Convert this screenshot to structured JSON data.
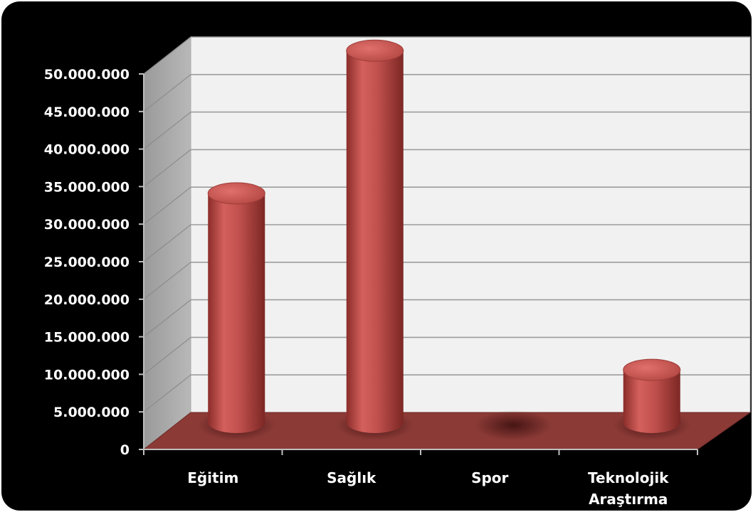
{
  "chart_data": {
    "type": "bar",
    "style": "3d-cylinder",
    "title": "",
    "xlabel": "",
    "ylabel": "",
    "categories": [
      "Eğitim",
      "Sağlık",
      "Spor",
      "Teknolojik Araştırma"
    ],
    "category_lines": [
      [
        "Eğitim"
      ],
      [
        "Sağlık"
      ],
      [
        "Spor"
      ],
      [
        "Teknolojik",
        "Araştırma"
      ]
    ],
    "values": [
      30500000,
      49500000,
      0,
      7000000
    ],
    "ylim": [
      0,
      50000000
    ],
    "yticks": [
      0,
      5000000,
      10000000,
      15000000,
      20000000,
      25000000,
      30000000,
      35000000,
      40000000,
      45000000,
      50000000
    ],
    "ytick_labels": [
      "0",
      "5.000.000",
      "10.000.000",
      "15.000.000",
      "20.000.000",
      "25.000.000",
      "30.000.000",
      "35.000.000",
      "40.000.000",
      "45.000.000",
      "50.000.000"
    ],
    "grid": true,
    "legend": "none",
    "colors": {
      "background": "#000000",
      "back_wall": "#f1f1f1",
      "side_wall": "#a6a6a6",
      "floor": "#8b3a36",
      "bar": "#c0504d",
      "bar_top": "#cf5a56",
      "text": "#ffffff"
    }
  }
}
